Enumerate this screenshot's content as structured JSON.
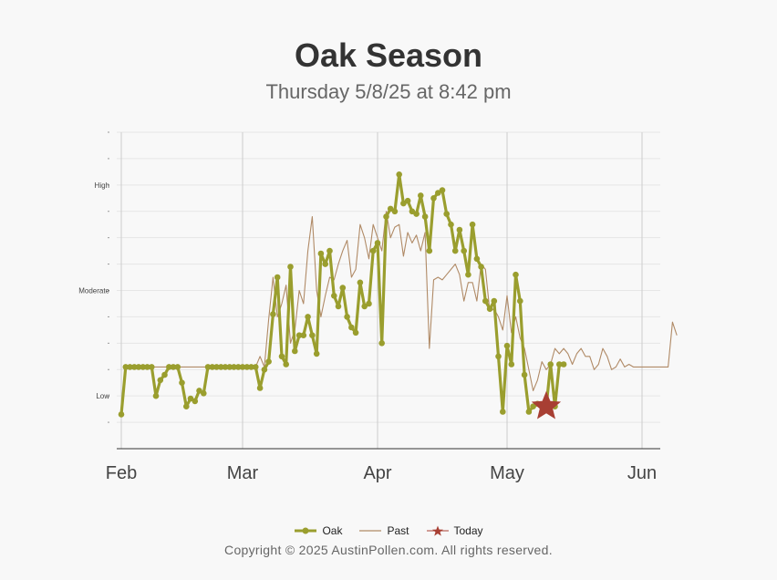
{
  "header": {
    "title": "Oak Season",
    "subtitle": "Thursday 5/8/25 at 8:42 pm"
  },
  "legend": {
    "oak_label": "Oak",
    "past_label": "Past",
    "today_label": "Today"
  },
  "footer": {
    "copyright": "Copyright © 2025 AustinPollen.com.  All rights reserved."
  },
  "colors": {
    "oak": "#9a9e2e",
    "past": "#b08a66",
    "today": "#a83f33",
    "grid": "#e6e6e6",
    "month_line": "#cccccc"
  },
  "chart_data": {
    "type": "line",
    "x_axis": {
      "labels": [
        "Feb",
        "Mar",
        "Apr",
        "May",
        "Jun"
      ],
      "start_day": "Feb 1",
      "end_day": "Jun 5"
    },
    "y_axis": {
      "labels": [
        "Low",
        "Moderate",
        "High"
      ],
      "ylim": [
        0,
        12
      ]
    },
    "series": [
      {
        "name": "Oak",
        "style": "thick line with markers",
        "values": [
          1.3,
          3.1,
          3.1,
          3.1,
          3.1,
          3.1,
          3.1,
          3.1,
          2.0,
          2.6,
          2.8,
          3.1,
          3.1,
          3.1,
          2.5,
          1.6,
          1.9,
          1.8,
          2.2,
          2.1,
          3.1,
          3.1,
          3.1,
          3.1,
          3.1,
          3.1,
          3.1,
          3.1,
          3.1,
          3.1,
          3.1,
          3.1,
          2.3,
          3.0,
          3.3,
          5.1,
          6.5,
          3.5,
          3.2,
          6.9,
          3.7,
          4.3,
          4.3,
          5.0,
          4.3,
          3.6,
          7.4,
          7.0,
          7.5,
          5.8,
          5.4,
          6.1,
          5.0,
          4.6,
          4.4,
          6.3,
          5.4,
          5.5,
          7.5,
          7.8,
          4.0,
          8.8,
          9.1,
          9.0,
          10.4,
          9.3,
          9.4,
          9.0,
          8.9,
          9.6,
          8.8,
          7.5,
          9.5,
          9.7,
          9.8,
          8.9,
          8.5,
          7.5,
          8.3,
          7.5,
          6.6,
          8.5,
          7.2,
          6.9,
          5.6,
          5.3,
          5.6,
          3.5,
          1.4,
          3.9,
          3.2,
          6.6,
          5.6,
          2.8,
          1.4,
          1.6,
          1.7,
          1.6,
          1.6,
          3.2,
          1.6,
          3.2,
          3.2
        ],
        "x_start": 0
      },
      {
        "name": "Past",
        "style": "thin line",
        "values": [
          1.3,
          3.0,
          3.1,
          3.1,
          3.1,
          3.1,
          3.1,
          3.1,
          3.1,
          3.1,
          3.1,
          3.1,
          3.1,
          3.1,
          3.1,
          3.1,
          3.1,
          3.1,
          3.1,
          3.1,
          3.1,
          3.1,
          3.1,
          3.1,
          3.1,
          3.1,
          3.1,
          3.1,
          3.1,
          3.1,
          3.1,
          3.1,
          3.5,
          3.1,
          4.9,
          6.5,
          5.0,
          5.5,
          6.2,
          4.0,
          4.5,
          6.0,
          5.5,
          7.5,
          8.8,
          6.0,
          5.0,
          5.8,
          6.5,
          6.4,
          7.0,
          7.5,
          7.9,
          6.5,
          6.8,
          8.5,
          8.0,
          7.2,
          8.5,
          8.0,
          7.5,
          9.0,
          8.0,
          8.4,
          8.5,
          7.3,
          8.2,
          7.8,
          8.1,
          7.5,
          8.2,
          3.8,
          6.4,
          6.5,
          6.4,
          6.6,
          6.8,
          7.0,
          6.6,
          5.6,
          6.3,
          6.3,
          5.6,
          7.0,
          6.8,
          5.2,
          5.3,
          5.0,
          4.5,
          5.8,
          4.4,
          5.0,
          4.2,
          3.8,
          3.0,
          2.2,
          2.6,
          3.3,
          3.0,
          3.2,
          3.8,
          3.6,
          3.8,
          3.6,
          3.2,
          3.6,
          3.8,
          3.5,
          3.5,
          3.0,
          3.2,
          3.8,
          3.5,
          3.0,
          3.1,
          3.4,
          3.1,
          3.2,
          3.1,
          3.1,
          3.1,
          3.1,
          3.1,
          3.1,
          3.1,
          3.1,
          3.1,
          4.8,
          4.3
        ],
        "x_start": 0
      }
    ],
    "today_marker": {
      "label": "Today",
      "x_day": 98,
      "value": 1.6
    },
    "grid": true,
    "legend_position": "bottom-center"
  }
}
